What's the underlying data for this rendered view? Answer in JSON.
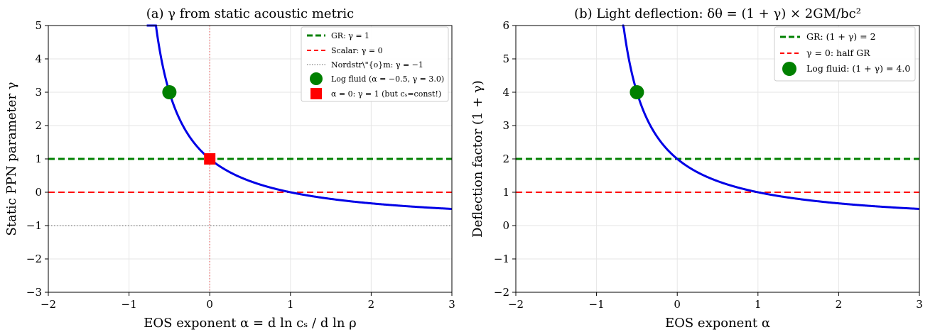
{
  "chart_data": [
    {
      "type": "line",
      "title": "(a) γ from static acoustic metric",
      "xlabel": "EOS exponent α = d ln cₛ / d ln ρ",
      "ylabel": "Static PPN parameter γ",
      "xlim": [
        -2,
        3
      ],
      "ylim": [
        -3,
        5
      ],
      "xticks": [
        -2,
        -1,
        0,
        1,
        2,
        3
      ],
      "yticks": [
        -3,
        -2,
        -1,
        0,
        1,
        2,
        3,
        4,
        5
      ],
      "xtick_labels": [
        "−2",
        "−1",
        "0",
        "1",
        "2",
        "3"
      ],
      "ytick_labels": [
        "−3",
        "−2",
        "−1",
        "0",
        "1",
        "2",
        "3",
        "4",
        "5"
      ],
      "grid": true,
      "legend_position": "top-right",
      "curve": {
        "relation": "gamma = (1 - alpha)/(1 + alpha)",
        "color": "#0000e6",
        "x_start": -0.78,
        "x_end": 3.0
      },
      "hlines": [
        {
          "y": 1,
          "color": "#008000",
          "style": "dashed",
          "label": "GR: γ = 1"
        },
        {
          "y": 0,
          "color": "#ff0000",
          "style": "dashed",
          "label": "Scalar: γ = 0"
        },
        {
          "y": -1,
          "color": "#808080",
          "style": "dotted",
          "label": "Nordstr\\\"{o}m: γ = −1"
        }
      ],
      "vlines": [
        {
          "x": 0,
          "color": "#f08080",
          "style": "dotted"
        }
      ],
      "points": [
        {
          "x": -0.5,
          "y": 3.0,
          "color": "#008000",
          "marker": "circle",
          "label": "Log fluid (α = −0.5, γ = 3.0)"
        },
        {
          "x": 0,
          "y": 1,
          "color": "#ff0000",
          "marker": "square",
          "label": "α = 0: γ = 1 (but cₛ=const!)"
        }
      ]
    },
    {
      "type": "line",
      "title": "(b) Light deflection: δθ = (1 + γ) × 2GM/bc²",
      "xlabel": "EOS exponent α",
      "ylabel": "Deflection factor (1 + γ)",
      "xlim": [
        -2,
        3
      ],
      "ylim": [
        -2,
        6
      ],
      "xticks": [
        -2,
        -1,
        0,
        1,
        2,
        3
      ],
      "yticks": [
        -2,
        -1,
        0,
        1,
        2,
        3,
        4,
        5,
        6
      ],
      "xtick_labels": [
        "−2",
        "−1",
        "0",
        "1",
        "2",
        "3"
      ],
      "ytick_labels": [
        "−2",
        "−1",
        "0",
        "1",
        "2",
        "3",
        "4",
        "5",
        "6"
      ],
      "grid": true,
      "legend_position": "top-right",
      "curve": {
        "relation": "1 + gamma = 2/(1 + alpha)",
        "color": "#0000e6",
        "x_start": -0.68,
        "x_end": 3.0
      },
      "hlines": [
        {
          "y": 2,
          "color": "#008000",
          "style": "dashed",
          "label": "GR: (1 + γ) = 2"
        },
        {
          "y": 1,
          "color": "#ff0000",
          "style": "dashed",
          "label": "γ = 0: half GR"
        }
      ],
      "vlines": [],
      "points": [
        {
          "x": -0.5,
          "y": 4.0,
          "color": "#008000",
          "marker": "circle",
          "label": "Log fluid: (1 + γ) = 4.0"
        }
      ]
    }
  ]
}
